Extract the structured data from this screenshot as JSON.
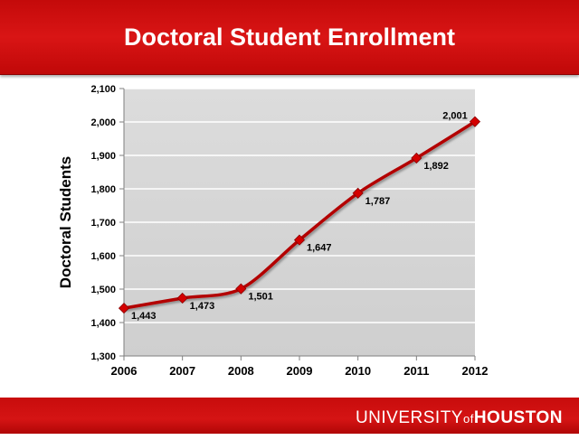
{
  "slide": {
    "title": "Doctoral Student Enrollment",
    "footer": {
      "part1": "UNIVERSITY",
      "part2": "of",
      "part3": "HOUSTON"
    }
  },
  "colors": {
    "brand_red": "#c8102e",
    "series_line": "#b30000",
    "plot_background": "#d9d9d9"
  },
  "chart_data": {
    "type": "line",
    "title": "",
    "xlabel": "",
    "ylabel": "Doctoral Students",
    "x": [
      "2006",
      "2007",
      "2008",
      "2009",
      "2010",
      "2011",
      "2012"
    ],
    "ylim": [
      1300,
      2100
    ],
    "yticks": [
      1300,
      1400,
      1500,
      1600,
      1700,
      1800,
      1900,
      2000,
      2100
    ],
    "ytick_labels": [
      "1,300",
      "1,400",
      "1,500",
      "1,600",
      "1,700",
      "1,800",
      "1,900",
      "2,000",
      "2,100"
    ],
    "grid": true,
    "smooth": true,
    "marker": "diamond",
    "series": [
      {
        "values": [
          1443,
          1473,
          1501,
          1647,
          1787,
          1892,
          2001
        ],
        "data_labels": [
          "1,443",
          "1,473",
          "1,501",
          "1,647",
          "1,787",
          "1,892",
          "2,001"
        ]
      }
    ]
  }
}
